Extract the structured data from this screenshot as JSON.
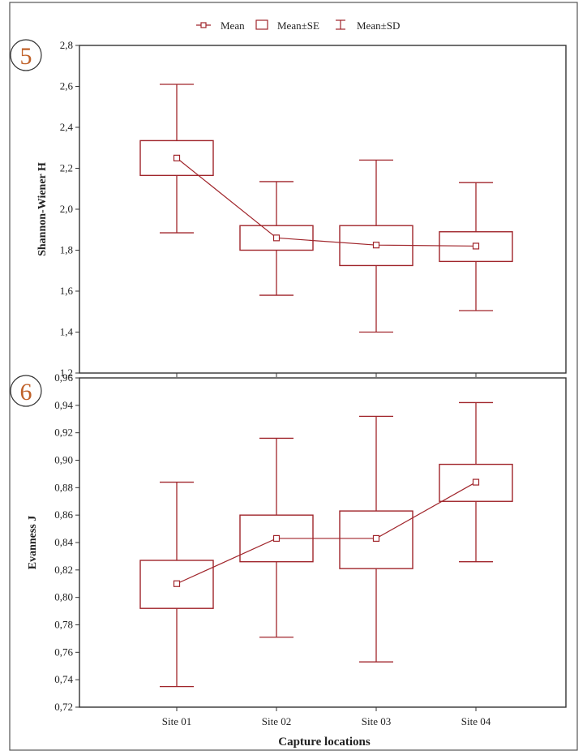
{
  "legend": {
    "mean": "Mean",
    "mean_se": "Mean±SE",
    "mean_sd": "Mean±SD"
  },
  "xlabel": "Capture locations",
  "colors": {
    "series": "#a0252b",
    "axis": "#333333",
    "text": "#222222"
  },
  "chart_data": [
    {
      "type": "box",
      "panel_label": "5",
      "ylabel": "Shannon-Wiener H",
      "ylim": [
        1.2,
        2.8
      ],
      "yticks": [
        "1,2",
        "1,4",
        "1,6",
        "1,8",
        "2,0",
        "2,2",
        "2,4",
        "2,6",
        "2,8"
      ],
      "ytick_values": [
        1.2,
        1.4,
        1.6,
        1.8,
        2.0,
        2.2,
        2.4,
        2.6,
        2.8
      ],
      "categories": [
        "Site 01",
        "Site 02",
        "Site 03",
        "Site 04"
      ],
      "mean": [
        2.25,
        1.86,
        1.825,
        1.82
      ],
      "se_low": [
        2.165,
        1.8,
        1.725,
        1.745
      ],
      "se_high": [
        2.335,
        1.92,
        1.92,
        1.89
      ],
      "sd_low": [
        1.885,
        1.58,
        1.4,
        1.505
      ],
      "sd_high": [
        2.61,
        2.135,
        2.24,
        2.13
      ]
    },
    {
      "type": "box",
      "panel_label": "6",
      "ylabel": "Evanness J",
      "ylim": [
        0.72,
        0.96
      ],
      "yticks": [
        "0,72",
        "0,74",
        "0,76",
        "0,78",
        "0,80",
        "0,82",
        "0,84",
        "0,86",
        "0,88",
        "0,90",
        "0,92",
        "0,94",
        "0,96"
      ],
      "ytick_values": [
        0.72,
        0.74,
        0.76,
        0.78,
        0.8,
        0.82,
        0.84,
        0.86,
        0.88,
        0.9,
        0.92,
        0.94,
        0.96
      ],
      "categories": [
        "Site 01",
        "Site 02",
        "Site 03",
        "Site 04"
      ],
      "mean": [
        0.81,
        0.843,
        0.843,
        0.884
      ],
      "se_low": [
        0.792,
        0.826,
        0.821,
        0.87
      ],
      "se_high": [
        0.827,
        0.86,
        0.863,
        0.897
      ],
      "sd_low": [
        0.735,
        0.771,
        0.753,
        0.826
      ],
      "sd_high": [
        0.884,
        0.916,
        0.932,
        0.942
      ]
    }
  ]
}
